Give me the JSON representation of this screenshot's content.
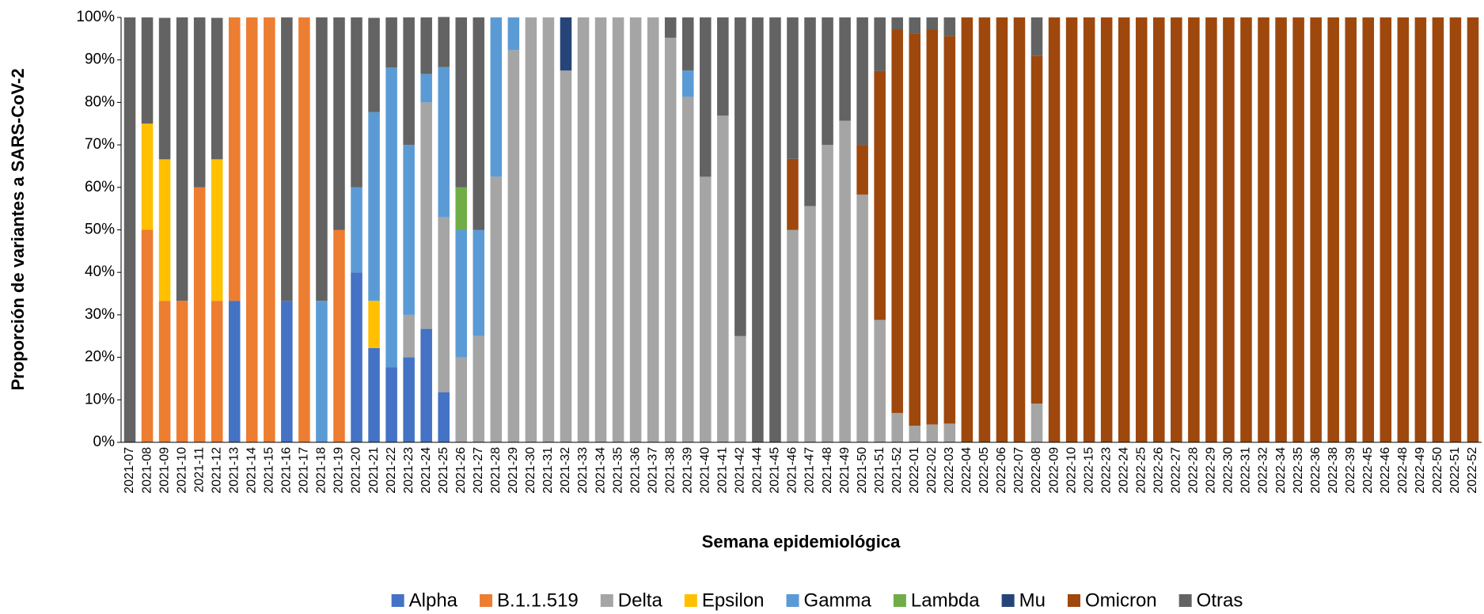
{
  "chart_data": {
    "type": "stacked_bar",
    "x_label": "Semana epidemiológica",
    "y_label": "Proporción de variantes a SARS-CoV-2",
    "categories": [
      "2021-07",
      "2021-08",
      "2021-09",
      "2021-10",
      "2021-11",
      "2021-12",
      "2021-13",
      "2021-14",
      "2021-15",
      "2021-16",
      "2021-17",
      "2021-18",
      "2021-19",
      "2021-20",
      "2021-21",
      "2021-22",
      "2021-23",
      "2021-24",
      "2021-25",
      "2021-26",
      "2021-27",
      "2021-28",
      "2021-29",
      "2021-30",
      "2021-31",
      "2021-32",
      "2021-33",
      "2021-34",
      "2021-35",
      "2021-36",
      "2021-37",
      "2021-38",
      "2021-39",
      "2021-40",
      "2021-41",
      "2021-42",
      "2021-44",
      "2021-45",
      "2021-46",
      "2021-47",
      "2021-48",
      "2021-49",
      "2021-50",
      "2021-51",
      "2021-52",
      "2022-01",
      "2022-02",
      "2022-03",
      "2022-04",
      "2022-05",
      "2022-06",
      "2022-07",
      "2022-08",
      "2022-09",
      "2022-10",
      "2022-15",
      "2022-23",
      "2022-24",
      "2022-25",
      "2022-26",
      "2022-27",
      "2022-28",
      "2022-29",
      "2022-30",
      "2022-31",
      "2022-32",
      "2022-34",
      "2022-35",
      "2022-36",
      "2022-38",
      "2022-39",
      "2022-45",
      "2022-46",
      "2022-48",
      "2022-49",
      "2022-50",
      "2022-51",
      "2022-52"
    ],
    "series": [
      {
        "name": "Alpha",
        "color": "#4472c4",
        "values": [
          0,
          0,
          0,
          0,
          0,
          0,
          33.3,
          0,
          0,
          33.3,
          0,
          0,
          0,
          40,
          22.2,
          17.6,
          20,
          26.7,
          11.8,
          0,
          0,
          0,
          0,
          0,
          0,
          0,
          0,
          0,
          0,
          0,
          0,
          0,
          0,
          0,
          0,
          0,
          0,
          0,
          0,
          0,
          0,
          0,
          0,
          0,
          0,
          0,
          0,
          0,
          0,
          0,
          0,
          0,
          0,
          0,
          0,
          0,
          0,
          0,
          0,
          0,
          0,
          0,
          0,
          0,
          0,
          0,
          0,
          0,
          0,
          0,
          0,
          0,
          0,
          0,
          0,
          0,
          0,
          0
        ]
      },
      {
        "name": "B.1.1.519",
        "color": "#ed7d31",
        "values": [
          0,
          50,
          33.3,
          33.3,
          60,
          33.3,
          66.7,
          100,
          100,
          0,
          100,
          0,
          50,
          0,
          0,
          0,
          0,
          0,
          0,
          0,
          0,
          0,
          0,
          0,
          0,
          0,
          0,
          0,
          0,
          0,
          0,
          0,
          0,
          0,
          0,
          0,
          0,
          0,
          0,
          0,
          0,
          0,
          0,
          0,
          0,
          0,
          0,
          0,
          0,
          0,
          0,
          0,
          0,
          0,
          0,
          0,
          0,
          0,
          0,
          0,
          0,
          0,
          0,
          0,
          0,
          0,
          0,
          0,
          0,
          0,
          0,
          0,
          0,
          0,
          0,
          0,
          0,
          0
        ]
      },
      {
        "name": "Delta",
        "color": "#a5a5a5",
        "values": [
          0,
          0,
          0,
          0,
          0,
          0,
          0,
          0,
          0,
          0,
          0,
          0,
          0,
          0,
          0,
          0,
          10,
          53.3,
          41.2,
          20,
          25,
          62.5,
          92.3,
          100,
          100,
          87.5,
          100,
          100,
          100,
          100,
          100,
          95.2,
          81.3,
          62.5,
          76.9,
          25,
          0,
          0,
          50,
          55.6,
          70,
          75.7,
          58.3,
          28.8,
          6.9,
          3.9,
          4.2,
          4.4,
          0,
          0,
          0,
          0,
          9.1,
          0,
          0,
          0,
          0,
          0,
          0,
          0,
          0,
          0,
          0,
          0,
          0,
          0,
          0,
          0,
          0,
          0,
          0,
          0,
          0,
          0,
          0,
          0,
          0,
          0
        ]
      },
      {
        "name": "Epsilon",
        "color": "#ffc000",
        "values": [
          0,
          25,
          33.3,
          0,
          0,
          33.3,
          0,
          0,
          0,
          0,
          0,
          0,
          0,
          0,
          11.1,
          0,
          0,
          0,
          0,
          0,
          0,
          0,
          0,
          0,
          0,
          0,
          0,
          0,
          0,
          0,
          0,
          0,
          0,
          0,
          0,
          0,
          0,
          0,
          0,
          0,
          0,
          0,
          0,
          0,
          0,
          0,
          0,
          0,
          0,
          0,
          0,
          0,
          0,
          0,
          0,
          0,
          0,
          0,
          0,
          0,
          0,
          0,
          0,
          0,
          0,
          0,
          0,
          0,
          0,
          0,
          0,
          0,
          0,
          0,
          0,
          0,
          0,
          0
        ]
      },
      {
        "name": "Gamma",
        "color": "#5b9bd5",
        "values": [
          0,
          0,
          0,
          0,
          0,
          0,
          0,
          0,
          0,
          0,
          0,
          33.3,
          0,
          20,
          44.4,
          70.6,
          40,
          6.7,
          35.3,
          30,
          25,
          37.5,
          7.7,
          0,
          0,
          0,
          0,
          0,
          0,
          0,
          0,
          0,
          6.2,
          0,
          0,
          0,
          0,
          0,
          0,
          0,
          0,
          0,
          0,
          0,
          0,
          0,
          0,
          0,
          0,
          0,
          0,
          0,
          0,
          0,
          0,
          0,
          0,
          0,
          0,
          0,
          0,
          0,
          0,
          0,
          0,
          0,
          0,
          0,
          0,
          0,
          0,
          0,
          0,
          0,
          0,
          0,
          0,
          0
        ]
      },
      {
        "name": "Lambda",
        "color": "#70ad47",
        "values": [
          0,
          0,
          0,
          0,
          0,
          0,
          0,
          0,
          0,
          0,
          0,
          0,
          0,
          0,
          0,
          0,
          0,
          0,
          0,
          10,
          0,
          0,
          0,
          0,
          0,
          0,
          0,
          0,
          0,
          0,
          0,
          0,
          0,
          0,
          0,
          0,
          0,
          0,
          0,
          0,
          0,
          0,
          0,
          0,
          0,
          0,
          0,
          0,
          0,
          0,
          0,
          0,
          0,
          0,
          0,
          0,
          0,
          0,
          0,
          0,
          0,
          0,
          0,
          0,
          0,
          0,
          0,
          0,
          0,
          0,
          0,
          0,
          0,
          0,
          0,
          0,
          0,
          0
        ]
      },
      {
        "name": "Mu",
        "color": "#264478",
        "values": [
          0,
          0,
          0,
          0,
          0,
          0,
          0,
          0,
          0,
          0,
          0,
          0,
          0,
          0,
          0,
          0,
          0,
          0,
          0,
          0,
          0,
          0,
          0,
          0,
          0,
          12.5,
          0,
          0,
          0,
          0,
          0,
          0,
          0,
          0,
          0,
          0,
          0,
          0,
          0,
          0,
          0,
          0,
          0,
          0,
          0,
          0,
          0,
          0,
          0,
          0,
          0,
          0,
          0,
          0,
          0,
          0,
          0,
          0,
          0,
          0,
          0,
          0,
          0,
          0,
          0,
          0,
          0,
          0,
          0,
          0,
          0,
          0,
          0,
          0,
          0,
          0,
          0,
          0
        ]
      },
      {
        "name": "Omicron",
        "color": "#9e480e",
        "values": [
          0,
          0,
          0,
          0,
          0,
          0,
          0,
          0,
          0,
          0,
          0,
          0,
          0,
          0,
          0,
          0,
          0,
          0,
          0,
          0,
          0,
          0,
          0,
          0,
          0,
          0,
          0,
          0,
          0,
          0,
          0,
          0,
          0,
          0,
          0,
          0,
          0,
          0,
          16.7,
          0,
          0,
          0,
          11.7,
          58.6,
          90.3,
          92.2,
          93,
          91.2,
          100,
          100,
          100,
          100,
          81.8,
          100,
          100,
          100,
          100,
          100,
          100,
          100,
          100,
          100,
          100,
          100,
          100,
          100,
          100,
          100,
          100,
          100,
          100,
          100,
          100,
          100,
          100,
          100,
          100,
          100
        ]
      },
      {
        "name": "Otras",
        "color": "#636363",
        "values": [
          100,
          25,
          33.3,
          66.7,
          40,
          33.3,
          0,
          0,
          0,
          66.7,
          0,
          66.7,
          50,
          40,
          22.2,
          11.8,
          30,
          13.3,
          11.8,
          40,
          50,
          0,
          0,
          0,
          0,
          0,
          0,
          0,
          0,
          0,
          0,
          4.8,
          12.5,
          37.5,
          23.1,
          75,
          100,
          100,
          33.3,
          44.4,
          30,
          24.3,
          30,
          12.6,
          2.8,
          3.9,
          2.8,
          4.4,
          0,
          0,
          0,
          0,
          9.1,
          0,
          0,
          0,
          0,
          0,
          0,
          0,
          0,
          0,
          0,
          0,
          0,
          0,
          0,
          0,
          0,
          0,
          0,
          0,
          0,
          0,
          0,
          0,
          0,
          0
        ]
      }
    ],
    "ylim": [
      0,
      100
    ],
    "yticks": [
      {
        "value": 0,
        "label": "0%"
      },
      {
        "value": 10,
        "label": "10%"
      },
      {
        "value": 20,
        "label": "20%"
      },
      {
        "value": 30,
        "label": "30%"
      },
      {
        "value": 40,
        "label": "40%"
      },
      {
        "value": 50,
        "label": "50%"
      },
      {
        "value": 60,
        "label": "60%"
      },
      {
        "value": 70,
        "label": "70%"
      },
      {
        "value": 80,
        "label": "80%"
      },
      {
        "value": 90,
        "label": "90%"
      },
      {
        "value": 100,
        "label": "100%"
      }
    ],
    "grid": false,
    "legend": "bottom"
  }
}
